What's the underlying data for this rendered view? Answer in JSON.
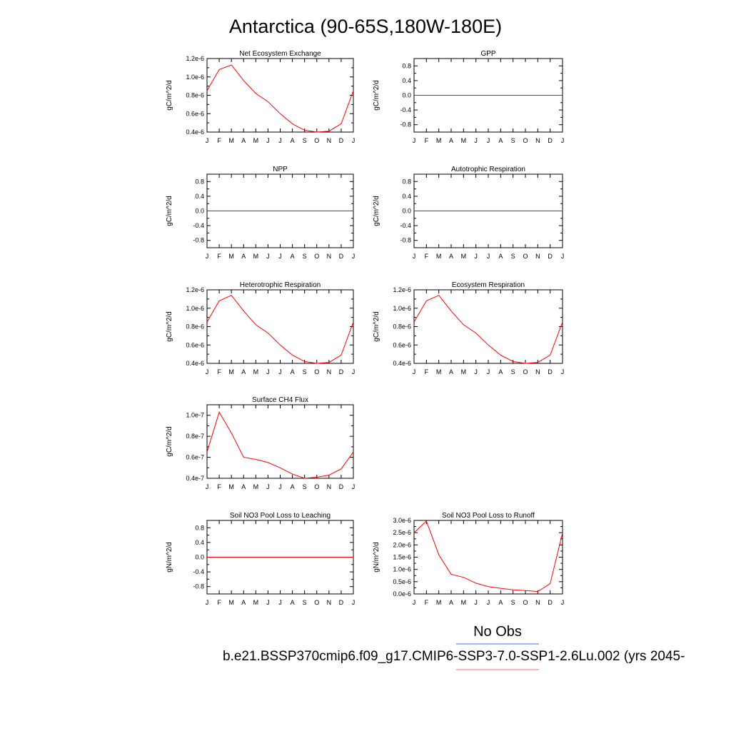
{
  "figure": {
    "title": "Antarctica (90-65S,180W-180E)",
    "legend": [
      {
        "label": "No Obs",
        "color": "#6f84ff"
      },
      {
        "label": "b.e21.BSSP370cmip6.f09_g17.CMIP6-SSP3-7.0-SSP1-2.6Lu.002 (yrs 2045-",
        "color": "#ff8c8c"
      }
    ],
    "series_color": "#ff0000"
  },
  "chart_data": [
    {
      "type": "line",
      "title": "Net Ecosystem Exchange",
      "ylabel": "gC/m^2/d",
      "x": [
        "J",
        "F",
        "M",
        "A",
        "M",
        "J",
        "J",
        "A",
        "S",
        "O",
        "N",
        "D",
        "J"
      ],
      "values": [
        8.5e-07,
        1.08e-06,
        1.13e-06,
        9.6e-07,
        8.2e-07,
        7.3e-07,
        6e-07,
        4.9e-07,
        4.2e-07,
        4e-07,
        4.1e-07,
        4.9e-07,
        8.5e-07
      ],
      "ylim": [
        4e-07,
        1.2e-06
      ],
      "yticks": [
        {
          "v": 4e-07,
          "label": "0.4e-6"
        },
        {
          "v": 6e-07,
          "label": "0.6e-6"
        },
        {
          "v": 8e-07,
          "label": "0.8e-6"
        },
        {
          "v": 1e-06,
          "label": "1.0e-6"
        },
        {
          "v": 1.2e-06,
          "label": "1.2e-6"
        }
      ]
    },
    {
      "type": "line",
      "title": "GPP",
      "ylabel": "gC/m^2/d",
      "x": [
        "J",
        "F",
        "M",
        "A",
        "M",
        "J",
        "J",
        "A",
        "S",
        "O",
        "N",
        "D",
        "J"
      ],
      "values": [
        0,
        0,
        0,
        0,
        0,
        0,
        0,
        0,
        0,
        0,
        0,
        0,
        0
      ],
      "ylim": [
        -1,
        1
      ],
      "yticks": [
        {
          "v": -0.8,
          "label": "-0.8"
        },
        {
          "v": -0.4,
          "label": "-0.4"
        },
        {
          "v": 0,
          "label": "0.0"
        },
        {
          "v": 0.4,
          "label": "0.4"
        },
        {
          "v": 0.8,
          "label": "0.8"
        }
      ]
    },
    {
      "type": "line",
      "title": "NPP",
      "ylabel": "gC/m^2/d",
      "x": [
        "J",
        "F",
        "M",
        "A",
        "M",
        "J",
        "J",
        "A",
        "S",
        "O",
        "N",
        "D",
        "J"
      ],
      "values": [
        0,
        0,
        0,
        0,
        0,
        0,
        0,
        0,
        0,
        0,
        0,
        0,
        0
      ],
      "ylim": [
        -1,
        1
      ],
      "yticks": [
        {
          "v": -0.8,
          "label": "-0.8"
        },
        {
          "v": -0.4,
          "label": "-0.4"
        },
        {
          "v": 0,
          "label": "0.0"
        },
        {
          "v": 0.4,
          "label": "0.4"
        },
        {
          "v": 0.8,
          "label": "0.8"
        }
      ]
    },
    {
      "type": "line",
      "title": "Autotrophic Respiration",
      "ylabel": "gC/m^2/d",
      "x": [
        "J",
        "F",
        "M",
        "A",
        "M",
        "J",
        "J",
        "A",
        "S",
        "O",
        "N",
        "D",
        "J"
      ],
      "values": [
        0,
        0,
        0,
        0,
        0,
        0,
        0,
        0,
        0,
        0,
        0,
        0,
        0
      ],
      "ylim": [
        -1,
        1
      ],
      "yticks": [
        {
          "v": -0.8,
          "label": "-0.8"
        },
        {
          "v": -0.4,
          "label": "-0.4"
        },
        {
          "v": 0,
          "label": "0.0"
        },
        {
          "v": 0.4,
          "label": "0.4"
        },
        {
          "v": 0.8,
          "label": "0.8"
        }
      ]
    },
    {
      "type": "line",
      "title": "Heterotrophic Respiration",
      "ylabel": "gC/m^2/d",
      "x": [
        "J",
        "F",
        "M",
        "A",
        "M",
        "J",
        "J",
        "A",
        "S",
        "O",
        "N",
        "D",
        "J"
      ],
      "values": [
        8.5e-07,
        1.08e-06,
        1.14e-06,
        9.7e-07,
        8.2e-07,
        7.3e-07,
        6e-07,
        4.9e-07,
        4.2e-07,
        4e-07,
        4.1e-07,
        4.9e-07,
        8.5e-07
      ],
      "ylim": [
        4e-07,
        1.2e-06
      ],
      "yticks": [
        {
          "v": 4e-07,
          "label": "0.4e-6"
        },
        {
          "v": 6e-07,
          "label": "0.6e-6"
        },
        {
          "v": 8e-07,
          "label": "0.8e-6"
        },
        {
          "v": 1e-06,
          "label": "1.0e-6"
        },
        {
          "v": 1.2e-06,
          "label": "1.2e-6"
        }
      ]
    },
    {
      "type": "line",
      "title": "Ecosystem Respiration",
      "ylabel": "gC/m^2/d",
      "x": [
        "J",
        "F",
        "M",
        "A",
        "M",
        "J",
        "J",
        "A",
        "S",
        "O",
        "N",
        "D",
        "J"
      ],
      "values": [
        8.5e-07,
        1.08e-06,
        1.14e-06,
        9.7e-07,
        8.2e-07,
        7.3e-07,
        6e-07,
        4.9e-07,
        4.2e-07,
        4e-07,
        4.1e-07,
        4.9e-07,
        8.5e-07
      ],
      "ylim": [
        4e-07,
        1.2e-06
      ],
      "yticks": [
        {
          "v": 4e-07,
          "label": "0.4e-6"
        },
        {
          "v": 6e-07,
          "label": "0.6e-6"
        },
        {
          "v": 8e-07,
          "label": "0.8e-6"
        },
        {
          "v": 1e-06,
          "label": "1.0e-6"
        },
        {
          "v": 1.2e-06,
          "label": "1.2e-6"
        }
      ]
    },
    {
      "type": "line",
      "title": "Surface CH4 Flux",
      "ylabel": "gC/m^2/d",
      "x": [
        "J",
        "F",
        "M",
        "A",
        "M",
        "J",
        "J",
        "A",
        "S",
        "O",
        "N",
        "D",
        "J"
      ],
      "values": [
        6.5e-08,
        1.03e-07,
        8.3e-08,
        6e-08,
        5.8e-08,
        5.5e-08,
        5e-08,
        4.4e-08,
        4e-08,
        4.1e-08,
        4.3e-08,
        4.9e-08,
        6.5e-08
      ],
      "ylim": [
        4e-08,
        1.1e-07
      ],
      "yticks": [
        {
          "v": 4e-08,
          "label": "0.4e-7"
        },
        {
          "v": 6e-08,
          "label": "0.6e-7"
        },
        {
          "v": 8e-08,
          "label": "0.8e-7"
        },
        {
          "v": 1e-07,
          "label": "1.0e-7"
        }
      ]
    },
    {
      "type": "line",
      "title": "Soil NO3 Pool Loss to Leaching",
      "ylabel": "gN/m^2/d",
      "x": [
        "J",
        "F",
        "M",
        "A",
        "M",
        "J",
        "J",
        "A",
        "S",
        "O",
        "N",
        "D",
        "J"
      ],
      "values": [
        0,
        0,
        0,
        0,
        0,
        0,
        0,
        0,
        0,
        0,
        0,
        0,
        0
      ],
      "ylim": [
        -1,
        1
      ],
      "yticks": [
        {
          "v": -0.8,
          "label": "-0.8"
        },
        {
          "v": -0.4,
          "label": "-0.4"
        },
        {
          "v": 0,
          "label": "0.0"
        },
        {
          "v": 0.4,
          "label": "0.4"
        },
        {
          "v": 0.8,
          "label": "0.8"
        }
      ]
    },
    {
      "type": "line",
      "title": "Soil NO3 Pool Loss to Runoff",
      "ylabel": "gN/m^2/d",
      "x": [
        "J",
        "F",
        "M",
        "A",
        "M",
        "J",
        "J",
        "A",
        "S",
        "O",
        "N",
        "D",
        "J"
      ],
      "values": [
        2.5e-06,
        2.97e-06,
        1.6e-06,
        8e-07,
        6.8e-07,
        4.4e-07,
        3e-07,
        2.3e-07,
        1.7e-07,
        1.4e-07,
        1e-07,
        4.2e-07,
        2.5e-06
      ],
      "ylim": [
        0,
        3e-06
      ],
      "yticks": [
        {
          "v": 0,
          "label": "0.0e-6"
        },
        {
          "v": 5e-07,
          "label": "0.5e-6"
        },
        {
          "v": 1e-06,
          "label": "1.0e-6"
        },
        {
          "v": 1.5e-06,
          "label": "1.5e-6"
        },
        {
          "v": 2e-06,
          "label": "2.0e-6"
        },
        {
          "v": 2.5e-06,
          "label": "2.5e-6"
        },
        {
          "v": 3e-06,
          "label": "3.0e-6"
        }
      ]
    }
  ]
}
